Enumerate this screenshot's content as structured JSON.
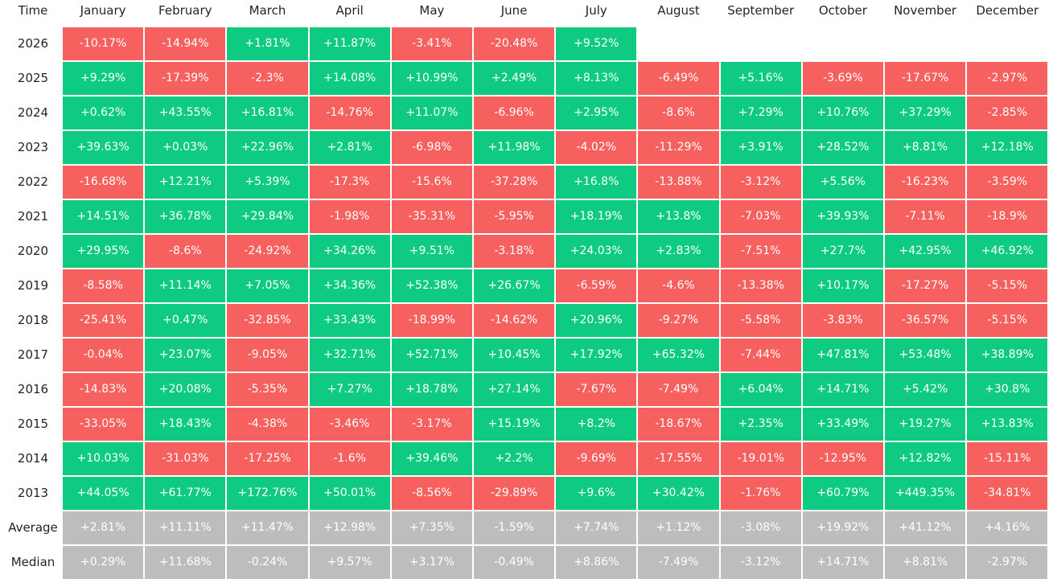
{
  "chart_data": {
    "type": "heatmap",
    "corner_label": "Time",
    "months": [
      "January",
      "February",
      "March",
      "April",
      "May",
      "June",
      "July",
      "August",
      "September",
      "October",
      "November",
      "December"
    ],
    "rows": [
      {
        "label": "2026",
        "kind": "year",
        "values": [
          "-10.17%",
          "-14.94%",
          "+1.81%",
          "+11.87%",
          "-3.41%",
          "-20.48%",
          "+9.52%",
          "",
          "",
          "",
          "",
          ""
        ]
      },
      {
        "label": "2025",
        "kind": "year",
        "values": [
          "+9.29%",
          "-17.39%",
          "-2.3%",
          "+14.08%",
          "+10.99%",
          "+2.49%",
          "+8.13%",
          "-6.49%",
          "+5.16%",
          "-3.69%",
          "-17.67%",
          "-2.97%"
        ]
      },
      {
        "label": "2024",
        "kind": "year",
        "values": [
          "+0.62%",
          "+43.55%",
          "+16.81%",
          "-14.76%",
          "+11.07%",
          "-6.96%",
          "+2.95%",
          "-8.6%",
          "+7.29%",
          "+10.76%",
          "+37.29%",
          "-2.85%"
        ]
      },
      {
        "label": "2023",
        "kind": "year",
        "values": [
          "+39.63%",
          "+0.03%",
          "+22.96%",
          "+2.81%",
          "-6.98%",
          "+11.98%",
          "-4.02%",
          "-11.29%",
          "+3.91%",
          "+28.52%",
          "+8.81%",
          "+12.18%"
        ]
      },
      {
        "label": "2022",
        "kind": "year",
        "values": [
          "-16.68%",
          "+12.21%",
          "+5.39%",
          "-17.3%",
          "-15.6%",
          "-37.28%",
          "+16.8%",
          "-13.88%",
          "-3.12%",
          "+5.56%",
          "-16.23%",
          "-3.59%"
        ]
      },
      {
        "label": "2021",
        "kind": "year",
        "values": [
          "+14.51%",
          "+36.78%",
          "+29.84%",
          "-1.98%",
          "-35.31%",
          "-5.95%",
          "+18.19%",
          "+13.8%",
          "-7.03%",
          "+39.93%",
          "-7.11%",
          "-18.9%"
        ]
      },
      {
        "label": "2020",
        "kind": "year",
        "values": [
          "+29.95%",
          "-8.6%",
          "-24.92%",
          "+34.26%",
          "+9.51%",
          "-3.18%",
          "+24.03%",
          "+2.83%",
          "-7.51%",
          "+27.7%",
          "+42.95%",
          "+46.92%"
        ]
      },
      {
        "label": "2019",
        "kind": "year",
        "values": [
          "-8.58%",
          "+11.14%",
          "+7.05%",
          "+34.36%",
          "+52.38%",
          "+26.67%",
          "-6.59%",
          "-4.6%",
          "-13.38%",
          "+10.17%",
          "-17.27%",
          "-5.15%"
        ]
      },
      {
        "label": "2018",
        "kind": "year",
        "values": [
          "-25.41%",
          "+0.47%",
          "-32.85%",
          "+33.43%",
          "-18.99%",
          "-14.62%",
          "+20.96%",
          "-9.27%",
          "-5.58%",
          "-3.83%",
          "-36.57%",
          "-5.15%"
        ]
      },
      {
        "label": "2017",
        "kind": "year",
        "values": [
          "-0.04%",
          "+23.07%",
          "-9.05%",
          "+32.71%",
          "+52.71%",
          "+10.45%",
          "+17.92%",
          "+65.32%",
          "-7.44%",
          "+47.81%",
          "+53.48%",
          "+38.89%"
        ]
      },
      {
        "label": "2016",
        "kind": "year",
        "values": [
          "-14.83%",
          "+20.08%",
          "-5.35%",
          "+7.27%",
          "+18.78%",
          "+27.14%",
          "-7.67%",
          "-7.49%",
          "+6.04%",
          "+14.71%",
          "+5.42%",
          "+30.8%"
        ]
      },
      {
        "label": "2015",
        "kind": "year",
        "values": [
          "-33.05%",
          "+18.43%",
          "-4.38%",
          "-3.46%",
          "-3.17%",
          "+15.19%",
          "+8.2%",
          "-18.67%",
          "+2.35%",
          "+33.49%",
          "+19.27%",
          "+13.83%"
        ]
      },
      {
        "label": "2014",
        "kind": "year",
        "values": [
          "+10.03%",
          "-31.03%",
          "-17.25%",
          "-1.6%",
          "+39.46%",
          "+2.2%",
          "-9.69%",
          "-17.55%",
          "-19.01%",
          "-12.95%",
          "+12.82%",
          "-15.11%"
        ]
      },
      {
        "label": "2013",
        "kind": "year",
        "values": [
          "+44.05%",
          "+61.77%",
          "+172.76%",
          "+50.01%",
          "-8.56%",
          "-29.89%",
          "+9.6%",
          "+30.42%",
          "-1.76%",
          "+60.79%",
          "+449.35%",
          "-34.81%"
        ]
      },
      {
        "label": "Average",
        "kind": "summary",
        "values": [
          "+2.81%",
          "+11.11%",
          "+11.47%",
          "+12.98%",
          "+7.35%",
          "-1.59%",
          "+7.74%",
          "+1.12%",
          "-3.08%",
          "+19.92%",
          "+41.12%",
          "+4.16%"
        ]
      },
      {
        "label": "Median",
        "kind": "summary",
        "values": [
          "+0.29%",
          "+11.68%",
          "-0.24%",
          "+9.57%",
          "+3.17%",
          "-0.49%",
          "+8.86%",
          "-7.49%",
          "-3.12%",
          "+14.71%",
          "+8.81%",
          "-2.97%"
        ]
      }
    ]
  },
  "colors": {
    "positive": "#0ecb81",
    "negative": "#f6605f",
    "summary": "#bdbdbd"
  }
}
